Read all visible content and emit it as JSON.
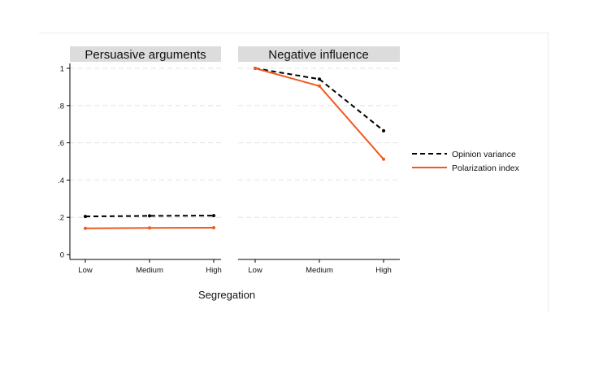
{
  "colors": {
    "opinion_variance": "#000000",
    "polarization_index": "#f05a1e",
    "panel_header_bg": "#dcdcdc",
    "grid": "#e3e3e3"
  },
  "chart_data": {
    "type": "line",
    "xlabel": "Segregation",
    "ylabel": "",
    "ylim": [
      0,
      1
    ],
    "yticks": [
      "0",
      ".2",
      ".4",
      ".6",
      ".8",
      "1"
    ],
    "yticks_values": [
      0,
      0.2,
      0.4,
      0.6,
      0.8,
      1
    ],
    "categories": [
      "Low",
      "Medium",
      "High"
    ],
    "grid": true,
    "legend_position": "right",
    "panels": [
      {
        "title": "Persuasive arguments",
        "series": [
          {
            "name": "Opinion variance",
            "style": "dashed",
            "values": [
              0.205,
              0.208,
              0.209
            ]
          },
          {
            "name": "Polarization index",
            "style": "solid",
            "values": [
              0.141,
              0.143,
              0.144
            ]
          }
        ]
      },
      {
        "title": "Negative influence",
        "series": [
          {
            "name": "Opinion variance",
            "style": "dashed",
            "values": [
              1.0,
              0.942,
              0.665
            ]
          },
          {
            "name": "Polarization index",
            "style": "solid",
            "values": [
              1.0,
              0.905,
              0.512
            ]
          }
        ]
      }
    ]
  }
}
